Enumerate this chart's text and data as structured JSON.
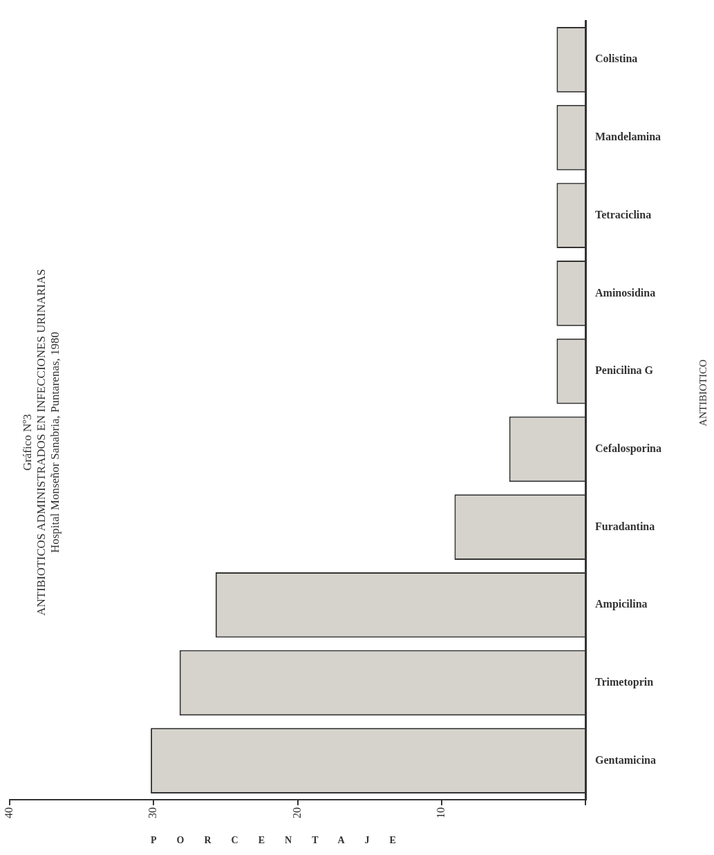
{
  "chart_data": {
    "type": "bar",
    "orientation": "horizontal",
    "title": "Gráfico Nº3",
    "subtitle": "ANTIBIOTICOS ADMINISTRADOS EN INFECCIONES URINARIAS",
    "annotations": [
      "Hospital Monseñor Sanabria, Puntarenas, 1980"
    ],
    "xlabel": "PORCENTAJE",
    "ylabel": "ANTIBIOTICO",
    "categories": [
      "Colistina",
      "Mandelamina",
      "Tetraciclina",
      "Aminosidina",
      "Penicilina G",
      "Cefalosporina",
      "Furadantina",
      "Ampicilina",
      "Trimetoprin",
      "Gentamicina"
    ],
    "values": [
      2,
      2,
      2,
      2,
      2,
      5.3,
      9.1,
      25.7,
      28.2,
      30.2
    ],
    "color": "#d6d3cc",
    "xlim": [
      40,
      0
    ],
    "xticks": [
      40,
      30,
      20,
      10,
      {
        "value": 0,
        "label": null
      }
    ],
    "grid": false,
    "legend": false
  }
}
